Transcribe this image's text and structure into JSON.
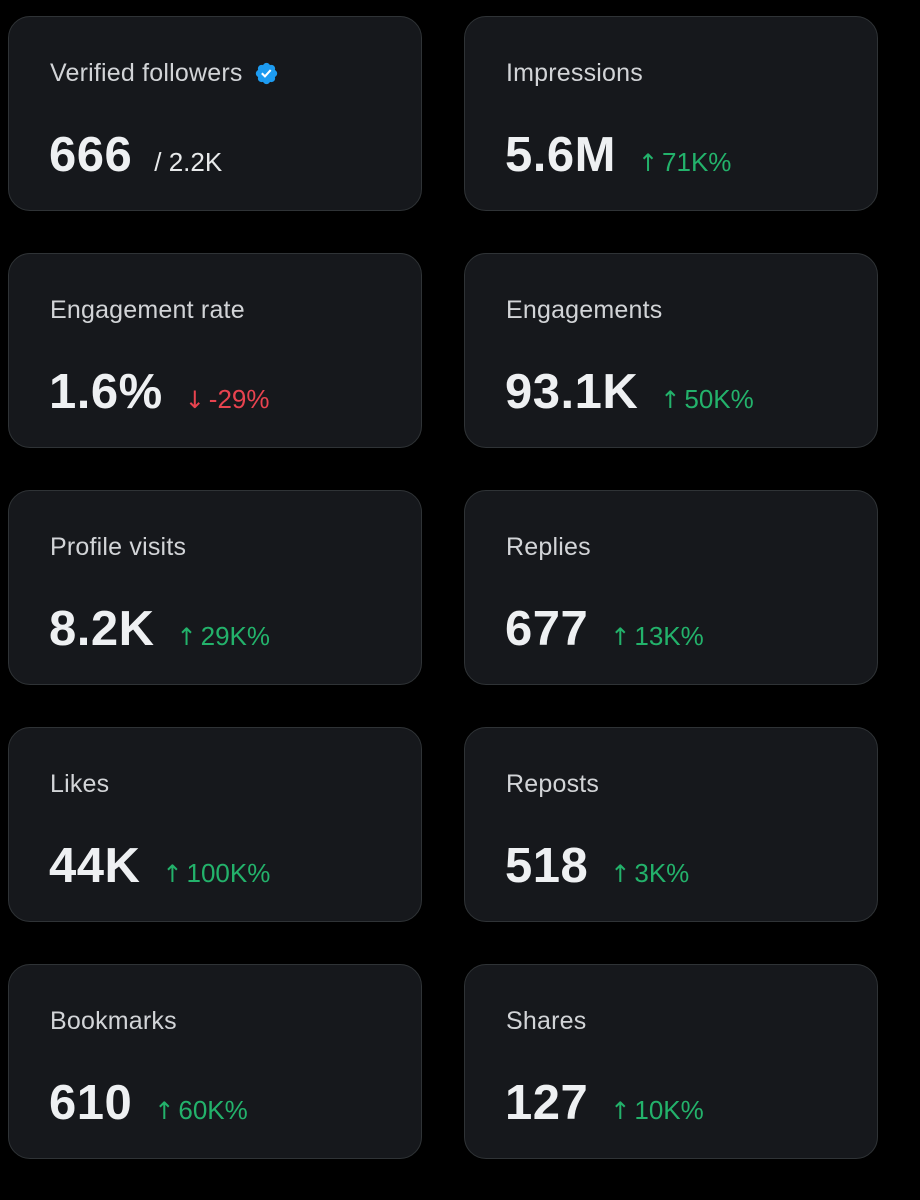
{
  "colors": {
    "background": "#000000",
    "card_background": "#16181c",
    "card_border": "#2f3336",
    "positive": "#23b26b",
    "negative": "#e8434f",
    "verified_badge": "#1d9bf0"
  },
  "metrics": [
    {
      "label": "Verified followers",
      "value": "666",
      "secondary": "/ 2.2K",
      "icon": "verified-badge-icon"
    },
    {
      "label": "Impressions",
      "value": "5.6M",
      "change": "71K%",
      "direction": "up",
      "arrow": "↑"
    },
    {
      "label": "Engagement rate",
      "value": "1.6%",
      "change": "-29%",
      "direction": "down",
      "arrow": "↓"
    },
    {
      "label": "Engagements",
      "value": "93.1K",
      "change": "50K%",
      "direction": "up",
      "arrow": "↑"
    },
    {
      "label": "Profile visits",
      "value": "8.2K",
      "change": "29K%",
      "direction": "up",
      "arrow": "↑"
    },
    {
      "label": "Replies",
      "value": "677",
      "change": "13K%",
      "direction": "up",
      "arrow": "↑"
    },
    {
      "label": "Likes",
      "value": "44K",
      "change": "100K%",
      "direction": "up",
      "arrow": "↑"
    },
    {
      "label": "Reposts",
      "value": "518",
      "change": "3K%",
      "direction": "up",
      "arrow": "↑"
    },
    {
      "label": "Bookmarks",
      "value": "610",
      "change": "60K%",
      "direction": "up",
      "arrow": "↑"
    },
    {
      "label": "Shares",
      "value": "127",
      "change": "10K%",
      "direction": "up",
      "arrow": "↑"
    }
  ]
}
